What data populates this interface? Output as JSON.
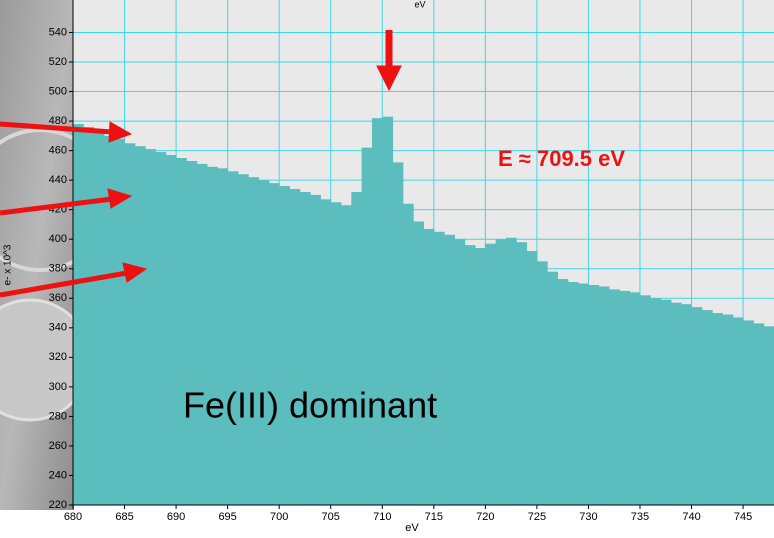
{
  "chart_data": {
    "type": "bar",
    "title": "eV",
    "x_label": "eV",
    "y_label": "e- x 10^3",
    "annotations": [
      "E ≈ 709.5 eV",
      "Fe(III) dominant"
    ],
    "x": [
      680,
      681,
      682,
      683,
      684,
      685,
      686,
      687,
      688,
      689,
      690,
      691,
      692,
      693,
      694,
      695,
      696,
      697,
      698,
      699,
      700,
      701,
      702,
      703,
      704,
      705,
      706,
      707,
      708,
      709,
      710,
      711,
      712,
      713,
      714,
      715,
      716,
      717,
      718,
      719,
      720,
      721,
      722,
      723,
      724,
      725,
      726,
      727,
      728,
      729,
      730,
      731,
      732,
      733,
      734,
      735,
      736,
      737,
      738,
      739,
      740,
      741,
      742,
      743,
      744,
      745,
      746,
      747
    ],
    "values": [
      478,
      476,
      473,
      470,
      468,
      465,
      463,
      461,
      459,
      457,
      455,
      453,
      451,
      449,
      448,
      446,
      444,
      442,
      440,
      438,
      436,
      434,
      432,
      430,
      427,
      425,
      423,
      432,
      462,
      482,
      483,
      452,
      424,
      412,
      407,
      405,
      403,
      400,
      396,
      394,
      397,
      400,
      401,
      398,
      392,
      385,
      378,
      373,
      371,
      370,
      369,
      368,
      366,
      365,
      364,
      362,
      360,
      359,
      357,
      356,
      354,
      352,
      350,
      349,
      347,
      345,
      343,
      341
    ],
    "color": "#5bbdbd",
    "xlim": [
      680,
      748
    ],
    "xticks": [
      680,
      685,
      690,
      695,
      700,
      705,
      710,
      715,
      720,
      725,
      730,
      735,
      740,
      745
    ],
    "ylim": [
      220,
      562
    ],
    "yticks": [
      220,
      240,
      260,
      280,
      300,
      320,
      340,
      360,
      380,
      400,
      420,
      440,
      460,
      480,
      500,
      520,
      540
    ],
    "grid": true,
    "grid_color": "#3fd8e8"
  }
}
